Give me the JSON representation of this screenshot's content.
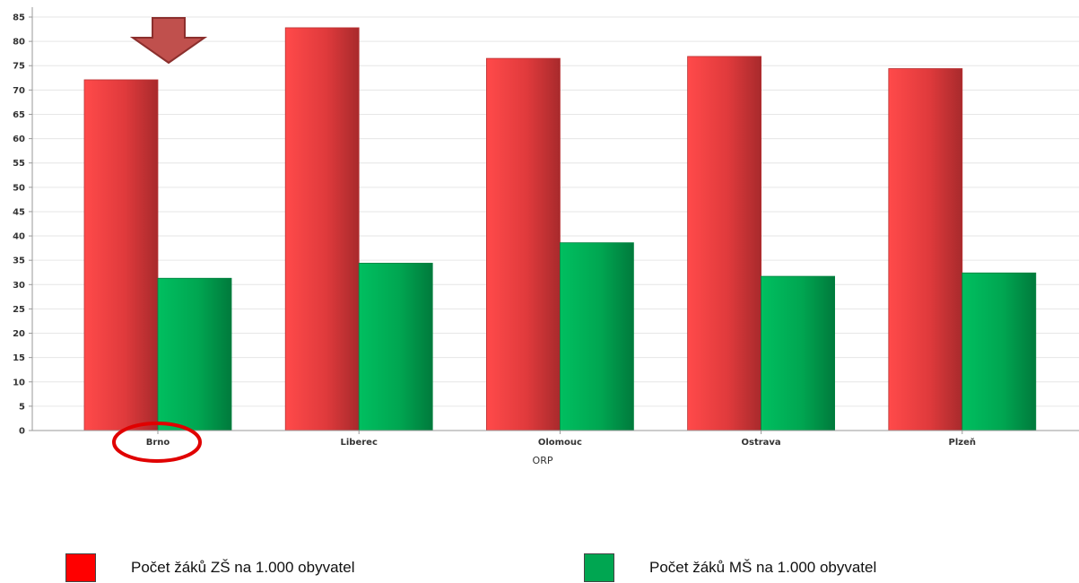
{
  "chart_data": {
    "type": "bar",
    "xlabel": "ORP",
    "ylabel": "",
    "ylim": [
      0,
      85
    ],
    "yticks": [
      0,
      5,
      10,
      15,
      20,
      25,
      30,
      35,
      40,
      45,
      50,
      55,
      60,
      65,
      70,
      75,
      80,
      85
    ],
    "categories": [
      "Brno",
      "Liberec",
      "Olomouc",
      "Ostrava",
      "Plzeň"
    ],
    "series": [
      {
        "name": "Počet žáků ZŠ na 1.000 obyvatel",
        "color": "#e8383a",
        "values": [
          72.1,
          82.8,
          76.5,
          76.9,
          74.4
        ]
      },
      {
        "name": "Počet žáků MŠ na 1.000 obyvatel",
        "color": "#00a651",
        "values": [
          31.3,
          34.4,
          38.6,
          31.7,
          32.4
        ]
      }
    ],
    "grid": true,
    "legend_position": "bottom",
    "annotations": {
      "arrow": {
        "category": "Brno",
        "color": "#c0504d",
        "icon": "down-arrow-icon"
      },
      "ellipse": {
        "category": "Brno",
        "color": "#e00000",
        "icon": "highlight-ellipse"
      }
    }
  }
}
